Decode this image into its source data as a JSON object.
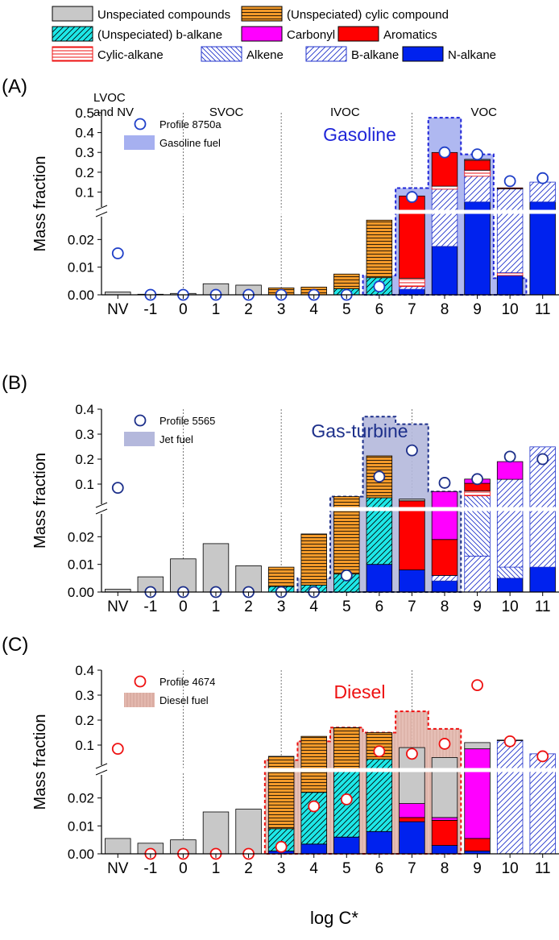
{
  "legend": {
    "items": [
      {
        "key": "unspeciated",
        "label": "Unspeciated compounds",
        "fill": "#c8c8c8",
        "pattern": "solid"
      },
      {
        "key": "cyclic",
        "label": "(Unspeciated) cylic compound",
        "fill": "#f39a2a",
        "pattern": "hlines-black"
      },
      {
        "key": "balkane_cyan",
        "label": "(Unspeciated) b-alkane",
        "fill": "#1ee8e8",
        "pattern": "diag-black"
      },
      {
        "key": "carbonyl",
        "label": "Carbonyl",
        "fill": "#ff00ff",
        "pattern": "solid"
      },
      {
        "key": "aromatics",
        "label": "Aromatics",
        "fill": "#ff0000",
        "pattern": "solid"
      },
      {
        "key": "cycalk",
        "label": "Cylic-alkane",
        "fill": "#ffffff",
        "pattern": "hlines-red"
      },
      {
        "key": "alkene",
        "label": "Alkene",
        "fill": "#ffffff",
        "pattern": "diag-blue-dense"
      },
      {
        "key": "balkane",
        "label": "B-alkane",
        "fill": "#ffffff",
        "pattern": "diag-blue"
      },
      {
        "key": "nalkane",
        "label": "N-alkane",
        "fill": "#0022ee",
        "pattern": "solid"
      }
    ]
  },
  "volatility_classes": [
    "LVOC\nand NV",
    "SVOC",
    "IVOC",
    "VOC"
  ],
  "xlabel": "log C*",
  "ylabel": "Mass fraction",
  "x_categories": [
    "NV",
    "-1",
    "0",
    "1",
    "2",
    "3",
    "4",
    "5",
    "6",
    "7",
    "8",
    "9",
    "10",
    "11"
  ],
  "chart_data": [
    {
      "type": "bar",
      "panel": "(A)",
      "title": "Gasoline",
      "title_color": "#1f25d8",
      "profile_label": "Profile 8750a",
      "fuel_label": "Gasoline fuel",
      "marker_color": "#1f3fc8",
      "fuel_color": "#a6b0f0",
      "fuel_edge": "#1f25d8",
      "fuel_pattern": "solid",
      "lower_ylim": [
        0,
        0.03
      ],
      "lower_ticks": [
        "0.00",
        "0.01",
        "0.02"
      ],
      "upper_ylim": [
        0,
        0.5
      ],
      "upper_ticks": [
        "0.1",
        "0.2",
        "0.3",
        "0.4",
        "0.5"
      ],
      "upper_tick_values": [
        0.1,
        0.2,
        0.3,
        0.4,
        0.5
      ],
      "fuel": [
        0,
        0,
        0,
        0,
        0,
        0,
        0,
        0,
        0.007,
        0.12,
        0.475,
        0.29,
        0.006,
        0
      ],
      "profile": [
        0.015,
        0,
        0,
        0,
        0,
        0,
        0,
        0,
        0.003,
        0.075,
        0.3,
        0.29,
        0.155,
        0.17
      ],
      "stacks": [
        [
          {
            "c": "unspeciated",
            "v": 0.001
          }
        ],
        [
          {
            "c": "unspeciated",
            "v": 0.0002
          }
        ],
        [
          {
            "c": "unspeciated",
            "v": 0.0005
          }
        ],
        [
          {
            "c": "unspeciated",
            "v": 0.004
          }
        ],
        [
          {
            "c": "unspeciated",
            "v": 0.0035
          }
        ],
        [
          {
            "c": "cyclic",
            "v": 0.0025
          }
        ],
        [
          {
            "c": "cyclic",
            "v": 0.0028
          }
        ],
        [
          {
            "c": "balkane_cyan",
            "v": 0.0022
          },
          {
            "c": "cyclic",
            "v": 0.0053
          }
        ],
        [
          {
            "c": "balkane_cyan",
            "v": 0.0062
          },
          {
            "c": "cyclic",
            "v": 0.0208
          }
        ],
        [
          {
            "c": "nalkane",
            "v": 0.002
          },
          {
            "c": "balkane",
            "v": 0.001
          },
          {
            "c": "cycalk",
            "v": 0.003
          },
          {
            "c": "aromatics",
            "v": 0.074
          }
        ],
        [
          {
            "c": "nalkane",
            "v": 0.0175
          },
          {
            "c": "balkane",
            "v": 0.097
          },
          {
            "c": "cycalk",
            "v": 0.015
          },
          {
            "c": "aromatics",
            "v": 0.17
          }
        ],
        [
          {
            "c": "nalkane",
            "v": 0.05
          },
          {
            "c": "balkane",
            "v": 0.13
          },
          {
            "c": "cycalk",
            "v": 0.03
          },
          {
            "c": "aromatics",
            "v": 0.05
          },
          {
            "c": "unspeciated",
            "v": 0.005
          }
        ],
        [
          {
            "c": "nalkane",
            "v": 0.007
          },
          {
            "c": "cycalk",
            "v": 0.001
          },
          {
            "c": "balkane",
            "v": 0.108
          },
          {
            "c": "aromatics",
            "v": 0.005
          }
        ],
        [
          {
            "c": "nalkane",
            "v": 0.05
          },
          {
            "c": "balkane",
            "v": 0.1
          }
        ]
      ]
    },
    {
      "type": "bar",
      "panel": "(B)",
      "title": "Gas-turbine",
      "title_color": "#1c2f8a",
      "profile_label": "Profile 5565",
      "fuel_label": "Jet fuel",
      "marker_color": "#1c2f8a",
      "fuel_color": "#b4b8dc",
      "fuel_edge": "#1c2f8a",
      "fuel_pattern": "solid",
      "lower_ylim": [
        0,
        0.03
      ],
      "lower_ticks": [
        "0.00",
        "0.01",
        "0.02"
      ],
      "upper_ylim": [
        0,
        0.4
      ],
      "upper_ticks": [
        "0.1",
        "0.2",
        "0.3",
        "0.4"
      ],
      "upper_tick_values": [
        0.1,
        0.2,
        0.3,
        0.4
      ],
      "fuel": [
        0,
        0,
        0,
        0,
        0,
        0,
        0.005,
        0.05,
        0.37,
        0.34,
        0.07,
        0,
        0,
        0
      ],
      "profile": [
        0.085,
        0,
        0,
        0,
        0,
        0,
        0,
        0.006,
        0.13,
        0.235,
        0.105,
        0.12,
        0.21,
        0.2
      ],
      "stacks": [
        [
          {
            "c": "unspeciated",
            "v": 0.001
          }
        ],
        [
          {
            "c": "unspeciated",
            "v": 0.0055
          }
        ],
        [
          {
            "c": "unspeciated",
            "v": 0.012
          }
        ],
        [
          {
            "c": "unspeciated",
            "v": 0.0175
          }
        ],
        [
          {
            "c": "unspeciated",
            "v": 0.0095
          }
        ],
        [
          {
            "c": "balkane_cyan",
            "v": 0.002
          },
          {
            "c": "cyclic",
            "v": 0.007
          }
        ],
        [
          {
            "c": "balkane_cyan",
            "v": 0.0025
          },
          {
            "c": "cyclic",
            "v": 0.0185
          }
        ],
        [
          {
            "c": "balkane_cyan",
            "v": 0.0065
          },
          {
            "c": "cyclic",
            "v": 0.0435
          }
        ],
        [
          {
            "c": "nalkane",
            "v": 0.01
          },
          {
            "c": "balkane_cyan",
            "v": 0.035
          },
          {
            "c": "cyclic",
            "v": 0.168
          }
        ],
        [
          {
            "c": "nalkane",
            "v": 0.008
          },
          {
            "c": "aromatics",
            "v": 0.025
          },
          {
            "c": "unspeciated",
            "v": 0.007
          }
        ],
        [
          {
            "c": "nalkane",
            "v": 0.004
          },
          {
            "c": "balkane",
            "v": 0.002
          },
          {
            "c": "aromatics",
            "v": 0.013
          },
          {
            "c": "carbonyl",
            "v": 0.051
          }
        ],
        [
          {
            "c": "balkane",
            "v": 0.013
          },
          {
            "c": "alkene",
            "v": 0.04
          },
          {
            "c": "cycalk",
            "v": 0.02
          },
          {
            "c": "aromatics",
            "v": 0.03
          },
          {
            "c": "carbonyl",
            "v": 0.017
          }
        ],
        [
          {
            "c": "nalkane",
            "v": 0.005
          },
          {
            "c": "alkene",
            "v": 0.004
          },
          {
            "c": "balkane",
            "v": 0.11
          },
          {
            "c": "carbonyl",
            "v": 0.071
          }
        ],
        [
          {
            "c": "nalkane",
            "v": 0.009
          },
          {
            "c": "balkane",
            "v": 0.24
          }
        ]
      ]
    },
    {
      "type": "bar",
      "panel": "(C)",
      "title": "Diesel",
      "title_color": "#ee1111",
      "profile_label": "Profile 4674",
      "fuel_label": "Diesel fuel",
      "marker_color": "#ee1111",
      "fuel_color": "#e3b8ae",
      "fuel_edge": "#ee1111",
      "fuel_pattern": "vlines",
      "lower_ylim": [
        0,
        0.03
      ],
      "lower_ticks": [
        "0.00",
        "0.01",
        "0.02"
      ],
      "upper_ylim": [
        0,
        0.4
      ],
      "upper_ticks": [
        "0.1",
        "0.2",
        "0.3",
        "0.4"
      ],
      "upper_tick_values": [
        0.1,
        0.2,
        0.3,
        0.4
      ],
      "fuel": [
        0,
        0,
        0,
        0,
        0,
        0.04,
        0.115,
        0.17,
        0.15,
        0.235,
        0.165,
        0,
        0,
        0
      ],
      "profile": [
        0.085,
        0,
        0,
        0,
        0,
        0.0025,
        0.017,
        0.0195,
        0.075,
        0.065,
        0.105,
        0.34,
        0.115,
        0.055
      ],
      "stacks": [
        [
          {
            "c": "unspeciated",
            "v": 0.0055
          }
        ],
        [
          {
            "c": "unspeciated",
            "v": 0.0038
          }
        ],
        [
          {
            "c": "unspeciated",
            "v": 0.005
          }
        ],
        [
          {
            "c": "unspeciated",
            "v": 0.015
          }
        ],
        [
          {
            "c": "unspeciated",
            "v": 0.016
          }
        ],
        [
          {
            "c": "nalkane",
            "v": 0.001
          },
          {
            "c": "balkane_cyan",
            "v": 0.008
          },
          {
            "c": "cyclic",
            "v": 0.046
          }
        ],
        [
          {
            "c": "nalkane",
            "v": 0.0035
          },
          {
            "c": "balkane_cyan",
            "v": 0.0185
          },
          {
            "c": "cyclic",
            "v": 0.113
          }
        ],
        [
          {
            "c": "nalkane",
            "v": 0.006
          },
          {
            "c": "balkane_cyan",
            "v": 0.024
          },
          {
            "c": "cyclic",
            "v": 0.14
          }
        ],
        [
          {
            "c": "nalkane",
            "v": 0.008
          },
          {
            "c": "balkane_cyan",
            "v": 0.035
          },
          {
            "c": "cyclic",
            "v": 0.107
          }
        ],
        [
          {
            "c": "nalkane",
            "v": 0.0115
          },
          {
            "c": "aromatics",
            "v": 0.0015
          },
          {
            "c": "carbonyl",
            "v": 0.005
          },
          {
            "c": "unspeciated",
            "v": 0.072
          }
        ],
        [
          {
            "c": "nalkane",
            "v": 0.003
          },
          {
            "c": "aromatics",
            "v": 0.009
          },
          {
            "c": "carbonyl",
            "v": 0.001
          },
          {
            "c": "unspeciated",
            "v": 0.037
          }
        ],
        [
          {
            "c": "nalkane",
            "v": 0.001
          },
          {
            "c": "aromatics",
            "v": 0.0045
          },
          {
            "c": "carbonyl",
            "v": 0.0795
          },
          {
            "c": "unspeciated",
            "v": 0.025
          }
        ],
        [
          {
            "c": "balkane",
            "v": 0.118
          },
          {
            "c": "carbonyl",
            "v": 0.002
          }
        ],
        [
          {
            "c": "balkane",
            "v": 0.065
          }
        ]
      ]
    }
  ]
}
